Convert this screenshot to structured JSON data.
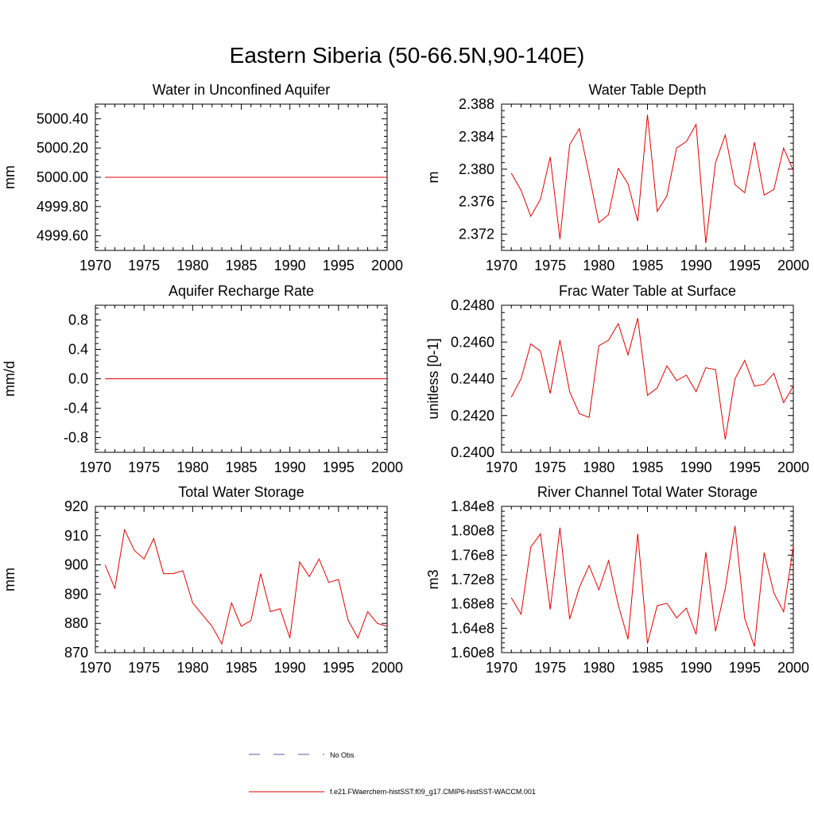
{
  "figure": {
    "title": "Eastern Siberia (50-66.5N,90-140E)"
  },
  "legend": {
    "entries": [
      {
        "label": "No Obs",
        "color": "#5a5aa8",
        "dash": true
      },
      {
        "label": "f.e21.FWaerchem-histSST.f09_g17.CMIP6-histSST-WACCM.001",
        "color": "#e00000",
        "dash": false
      }
    ]
  },
  "colors": {
    "series": "#e00000",
    "axis": "#000000"
  },
  "chart_data": [
    {
      "type": "line",
      "title": "Water in Unconfined Aquifer",
      "ylabel": "mm",
      "xlim": [
        1970,
        2000
      ],
      "ylim": [
        4999.5,
        5000.5
      ],
      "xticks": [
        1970,
        1975,
        1980,
        1985,
        1990,
        1995,
        2000
      ],
      "yticks": [
        4999.6,
        4999.8,
        5000.0,
        5000.2,
        5000.4
      ],
      "ytick_labels": [
        "4999.60",
        "4999.80",
        "5000.00",
        "5000.20",
        "5000.40"
      ],
      "series": [
        {
          "x": [
            1971,
            2000
          ],
          "values": [
            5000.0,
            5000.0
          ]
        }
      ]
    },
    {
      "type": "line",
      "title": "Water Table Depth",
      "ylabel": "m",
      "xlim": [
        1970,
        2000
      ],
      "ylim": [
        2.37,
        2.388
      ],
      "xticks": [
        1970,
        1975,
        1980,
        1985,
        1990,
        1995,
        2000
      ],
      "yticks": [
        2.372,
        2.376,
        2.38,
        2.384,
        2.388
      ],
      "ytick_labels": [
        "2.372",
        "2.376",
        "2.380",
        "2.384",
        "2.388"
      ],
      "series": [
        {
          "x": [
            1971,
            1972,
            1973,
            1974,
            1975,
            1976,
            1977,
            1978,
            1979,
            1980,
            1981,
            1982,
            1983,
            1984,
            1985,
            1986,
            1987,
            1988,
            1989,
            1990,
            1991,
            1992,
            1993,
            1994,
            1995,
            1996,
            1997,
            1998,
            1999,
            2000
          ],
          "values": [
            2.3795,
            2.3774,
            2.3742,
            2.3763,
            2.3815,
            2.3714,
            2.383,
            2.385,
            2.3793,
            2.3734,
            2.3744,
            2.3801,
            2.3782,
            2.3736,
            2.3867,
            2.3748,
            2.3767,
            2.3826,
            2.3834,
            2.3855,
            2.3709,
            2.3808,
            2.3842,
            2.3781,
            2.3771,
            2.3833,
            2.3768,
            2.3775,
            2.3826,
            2.3798
          ]
        }
      ]
    },
    {
      "type": "line",
      "title": "Aquifer Recharge Rate",
      "ylabel": "mm/d",
      "xlim": [
        1970,
        2000
      ],
      "ylim": [
        -1.0,
        1.0
      ],
      "xticks": [
        1970,
        1975,
        1980,
        1985,
        1990,
        1995,
        2000
      ],
      "yticks": [
        -0.8,
        -0.4,
        0.0,
        0.4,
        0.8
      ],
      "ytick_labels": [
        "-0.8",
        "-0.4",
        "0.0",
        "0.4",
        "0.8"
      ],
      "series": [
        {
          "x": [
            1971,
            2000
          ],
          "values": [
            0.0,
            0.0
          ]
        }
      ]
    },
    {
      "type": "line",
      "title": "Frac Water Table at Surface",
      "ylabel": "unitless [0-1]",
      "xlim": [
        1970,
        2000
      ],
      "ylim": [
        0.24,
        0.248
      ],
      "xticks": [
        1970,
        1975,
        1980,
        1985,
        1990,
        1995,
        2000
      ],
      "yticks": [
        0.24,
        0.242,
        0.244,
        0.246,
        0.248
      ],
      "ytick_labels": [
        "0.2400",
        "0.2420",
        "0.2440",
        "0.2460",
        "0.2480"
      ],
      "series": [
        {
          "x": [
            1971,
            1972,
            1973,
            1974,
            1975,
            1976,
            1977,
            1978,
            1979,
            1980,
            1981,
            1982,
            1983,
            1984,
            1985,
            1986,
            1987,
            1988,
            1989,
            1990,
            1991,
            1992,
            1993,
            1994,
            1995,
            1996,
            1997,
            1998,
            1999,
            2000
          ],
          "values": [
            0.243,
            0.244,
            0.2459,
            0.2455,
            0.2432,
            0.2461,
            0.2433,
            0.2421,
            0.2419,
            0.2458,
            0.2461,
            0.247,
            0.2453,
            0.2473,
            0.2431,
            0.2435,
            0.2447,
            0.2439,
            0.2442,
            0.2433,
            0.2446,
            0.2445,
            0.2407,
            0.244,
            0.245,
            0.2436,
            0.2437,
            0.2443,
            0.2427,
            0.2436
          ]
        }
      ]
    },
    {
      "type": "line",
      "title": "Total Water Storage",
      "ylabel": "mm",
      "xlim": [
        1970,
        2000
      ],
      "ylim": [
        870,
        920
      ],
      "xticks": [
        1970,
        1975,
        1980,
        1985,
        1990,
        1995,
        2000
      ],
      "yticks": [
        870,
        880,
        890,
        900,
        910,
        920
      ],
      "ytick_labels": [
        "870",
        "880",
        "890",
        "900",
        "910",
        "920"
      ],
      "series": [
        {
          "x": [
            1971,
            1972,
            1973,
            1974,
            1975,
            1976,
            1977,
            1978,
            1979,
            1980,
            1981,
            1982,
            1983,
            1984,
            1985,
            1986,
            1987,
            1988,
            1989,
            1990,
            1991,
            1992,
            1993,
            1994,
            1995,
            1996,
            1997,
            1998,
            1999,
            2000
          ],
          "values": [
            900,
            892,
            912,
            905,
            902,
            909,
            897,
            897,
            898,
            887,
            883,
            879,
            873,
            887,
            879,
            881,
            897,
            884,
            885,
            875,
            901,
            896,
            902,
            894,
            895,
            881,
            875,
            884,
            880,
            879
          ]
        }
      ]
    },
    {
      "type": "line",
      "title": "River Channel Total Water Storage",
      "ylabel": "m3",
      "xlim": [
        1970,
        2000
      ],
      "ylim": [
        160000000.0,
        184000000.0
      ],
      "xticks": [
        1970,
        1975,
        1980,
        1985,
        1990,
        1995,
        2000
      ],
      "yticks": [
        160000000.0,
        164000000.0,
        168000000.0,
        172000000.0,
        176000000.0,
        180000000.0,
        184000000.0
      ],
      "ytick_labels": [
        "1.60e8",
        "1.64e8",
        "1.68e8",
        "1.72e8",
        "1.76e8",
        "1.80e8",
        "1.84e8"
      ],
      "series": [
        {
          "x": [
            1971,
            1972,
            1973,
            1974,
            1975,
            1976,
            1977,
            1978,
            1979,
            1980,
            1981,
            1982,
            1983,
            1984,
            1985,
            1986,
            1987,
            1988,
            1989,
            1990,
            1991,
            1992,
            1993,
            1994,
            1995,
            1996,
            1997,
            1998,
            1999,
            2000
          ],
          "values": [
            169000000.0,
            166300000.0,
            177300000.0,
            179500000.0,
            167100000.0,
            180500000.0,
            165500000.0,
            170700000.0,
            174300000.0,
            170300000.0,
            175100000.0,
            167800000.0,
            162200000.0,
            179500000.0,
            161500000.0,
            167700000.0,
            168100000.0,
            165700000.0,
            167300000.0,
            163000000.0,
            176500000.0,
            163500000.0,
            170500000.0,
            180800000.0,
            165600000.0,
            161000000.0,
            176400000.0,
            169800000.0,
            166700000.0,
            177500000.0
          ]
        }
      ]
    }
  ]
}
